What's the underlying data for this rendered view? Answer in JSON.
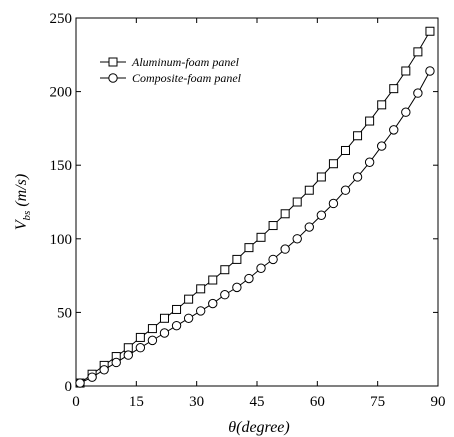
{
  "chart_data": {
    "type": "line",
    "xlabel": "θ(degree)",
    "ylabel_main": "V",
    "ylabel_sub": "bs",
    "ylabel_tail": " (m/s)",
    "xlim": [
      0,
      90
    ],
    "ylim": [
      0,
      250
    ],
    "xticks": [
      0,
      15,
      30,
      45,
      60,
      75,
      90
    ],
    "yticks": [
      0,
      50,
      100,
      150,
      200,
      250
    ],
    "grid": false,
    "legend_position": "top-left",
    "x": [
      1,
      4,
      7,
      10,
      13,
      16,
      19,
      22,
      25,
      28,
      31,
      34,
      37,
      40,
      43,
      46,
      49,
      52,
      55,
      58,
      61,
      64,
      67,
      70,
      73,
      76,
      79,
      82,
      85,
      88
    ],
    "series": [
      {
        "name": "Aluminum-foam panel",
        "marker": "square",
        "values": [
          2,
          8,
          14,
          20,
          26,
          33,
          39,
          46,
          52,
          59,
          66,
          72,
          79,
          86,
          94,
          101,
          109,
          117,
          125,
          133,
          142,
          151,
          160,
          170,
          180,
          191,
          202,
          214,
          227,
          241
        ]
      },
      {
        "name": "Composite-foam panel",
        "marker": "circle",
        "values": [
          2,
          6,
          11,
          16,
          21,
          26,
          31,
          36,
          41,
          46,
          51,
          56,
          62,
          67,
          73,
          80,
          86,
          93,
          100,
          108,
          116,
          124,
          133,
          142,
          152,
          163,
          174,
          186,
          199,
          214
        ]
      }
    ]
  }
}
